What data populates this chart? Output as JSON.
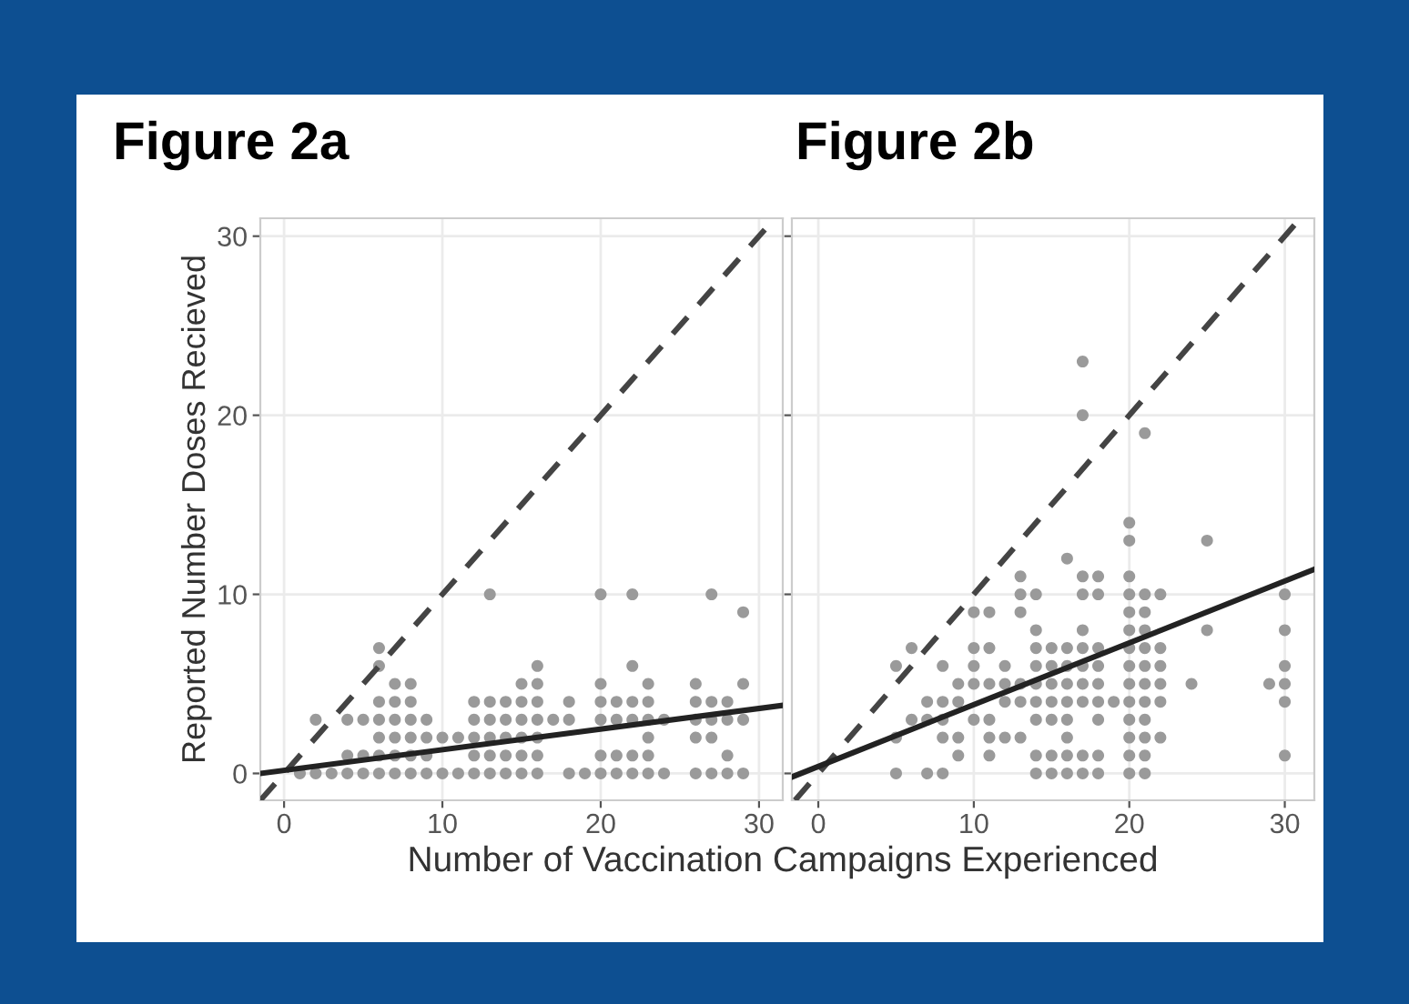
{
  "chart_data": [
    {
      "type": "scatter",
      "title": "Figure 2a",
      "xlabel": "Number of Vaccination Campaigns Experienced",
      "ylabel": "Reported Number Doses Recieved",
      "xlim": [
        -1.5,
        31.5
      ],
      "ylim": [
        -1.5,
        31
      ],
      "xticks": [
        0,
        10,
        20,
        30
      ],
      "yticks": [
        0,
        10,
        20,
        30
      ],
      "grid": true,
      "series": [
        {
          "marker": "circle",
          "color": "#9a9a9a",
          "x": [
            13,
            20,
            22,
            27,
            29,
            6,
            6,
            16,
            22,
            7,
            8,
            15,
            16,
            20,
            23,
            26,
            29,
            6,
            7,
            8,
            12,
            13,
            14,
            15,
            16,
            18,
            20,
            21,
            22,
            23,
            26,
            27,
            28,
            2,
            4,
            5,
            6,
            7,
            8,
            9,
            12,
            13,
            14,
            15,
            16,
            17,
            18,
            20,
            21,
            22,
            23,
            24,
            26,
            27,
            28,
            29,
            6,
            7,
            8,
            9,
            10,
            11,
            12,
            13,
            14,
            15,
            16,
            23,
            26,
            27,
            4,
            5,
            6,
            7,
            8,
            9,
            12,
            13,
            14,
            15,
            16,
            20,
            21,
            22,
            23,
            28,
            1,
            2,
            3,
            4,
            5,
            6,
            7,
            8,
            9,
            10,
            11,
            12,
            13,
            14,
            15,
            16,
            18,
            19,
            20,
            21,
            22,
            23,
            24,
            26,
            27,
            28,
            29
          ],
          "values": [
            10,
            10,
            10,
            10,
            9,
            7,
            6,
            6,
            6,
            5,
            5,
            5,
            5,
            5,
            5,
            5,
            5,
            4,
            4,
            4,
            4,
            4,
            4,
            4,
            4,
            4,
            4,
            4,
            4,
            4,
            4,
            4,
            4,
            3,
            3,
            3,
            3,
            3,
            3,
            3,
            3,
            3,
            3,
            3,
            3,
            3,
            3,
            3,
            3,
            3,
            3,
            3,
            3,
            3,
            3,
            3,
            2,
            2,
            2,
            2,
            2,
            2,
            2,
            2,
            2,
            2,
            2,
            2,
            2,
            2,
            1,
            1,
            1,
            1,
            1,
            1,
            1,
            1,
            1,
            1,
            1,
            1,
            1,
            1,
            1,
            1,
            0,
            0,
            0,
            0,
            0,
            0,
            0,
            0,
            0,
            0,
            0,
            0,
            0,
            0,
            0,
            0,
            0,
            0,
            0,
            0,
            0,
            0,
            0,
            0,
            0,
            0,
            0
          ]
        },
        {
          "type": "line",
          "line_style": "dashed",
          "color": "#444444",
          "x": [
            -1.5,
            31
          ],
          "values": [
            -1.5,
            31
          ]
        },
        {
          "type": "line",
          "line_style": "solid",
          "color": "#222222",
          "x": [
            -1.5,
            31.5
          ],
          "values": [
            0.0,
            3.8
          ]
        }
      ]
    },
    {
      "type": "scatter",
      "title": "Figure 2b",
      "xlim": [
        -1.7,
        31.9
      ],
      "ylim": [
        -1.5,
        31
      ],
      "xticks": [
        0,
        10,
        20,
        30
      ],
      "yticks": [
        0,
        10,
        20,
        30
      ],
      "tick_labels": "x",
      "grid": true,
      "series": [
        {
          "marker": "circle",
          "color": "#9a9a9a",
          "x": [
            17,
            17,
            21,
            20,
            20,
            25,
            16,
            13,
            17,
            18,
            20,
            13,
            14,
            17,
            18,
            20,
            21,
            22,
            30,
            10,
            11,
            13,
            20,
            21,
            14,
            17,
            20,
            21,
            25,
            30,
            6,
            10,
            11,
            14,
            15,
            16,
            17,
            18,
            20,
            21,
            22,
            5,
            8,
            10,
            12,
            14,
            15,
            16,
            17,
            18,
            20,
            21,
            22,
            30,
            9,
            10,
            11,
            12,
            13,
            14,
            15,
            16,
            17,
            18,
            20,
            21,
            22,
            24,
            29,
            30,
            7,
            8,
            9,
            12,
            13,
            14,
            15,
            16,
            17,
            18,
            19,
            20,
            21,
            22,
            30,
            6,
            7,
            8,
            10,
            11,
            14,
            15,
            16,
            18,
            20,
            21,
            5,
            8,
            9,
            11,
            12,
            13,
            16,
            20,
            21,
            22,
            9,
            11,
            14,
            15,
            16,
            17,
            18,
            20,
            21,
            30,
            5,
            7,
            8,
            14,
            15,
            16,
            17,
            18,
            20,
            21
          ],
          "values": [
            23,
            20,
            19,
            14,
            13,
            13,
            12,
            11,
            11,
            11,
            11,
            10,
            10,
            10,
            10,
            10,
            10,
            10,
            10,
            9,
            9,
            9,
            9,
            9,
            8,
            8,
            8,
            8,
            8,
            8,
            7,
            7,
            7,
            7,
            7,
            7,
            7,
            7,
            7,
            7,
            7,
            6,
            6,
            6,
            6,
            6,
            6,
            6,
            6,
            6,
            6,
            6,
            6,
            6,
            5,
            5,
            5,
            5,
            5,
            5,
            5,
            5,
            5,
            5,
            5,
            5,
            5,
            5,
            5,
            5,
            4,
            4,
            4,
            4,
            4,
            4,
            4,
            4,
            4,
            4,
            4,
            4,
            4,
            4,
            4,
            3,
            3,
            3,
            3,
            3,
            3,
            3,
            3,
            3,
            3,
            3,
            2,
            2,
            2,
            2,
            2,
            2,
            2,
            2,
            2,
            2,
            1,
            1,
            1,
            1,
            1,
            1,
            1,
            1,
            1,
            1,
            0,
            0,
            0,
            0,
            0,
            0,
            0,
            0,
            0,
            0
          ]
        },
        {
          "type": "line",
          "line_style": "dashed",
          "color": "#444444",
          "x": [
            -1.5,
            31
          ],
          "values": [
            -1.5,
            31
          ]
        },
        {
          "type": "line",
          "line_style": "solid",
          "color": "#222222",
          "x": [
            -1.7,
            31.9
          ],
          "values": [
            -0.2,
            11.4
          ]
        }
      ]
    }
  ]
}
